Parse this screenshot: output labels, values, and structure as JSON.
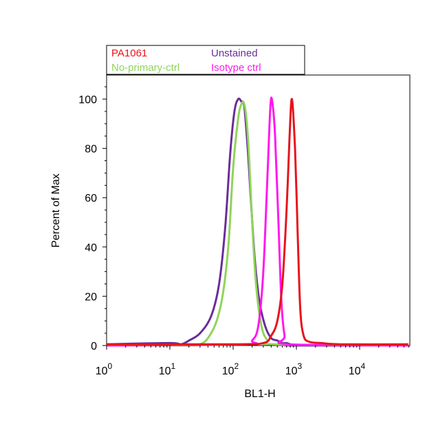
{
  "chart_data": {
    "type": "line",
    "title": "",
    "xlabel": "BL1-H",
    "ylabel": "Percent of Max",
    "x_scale": "log",
    "xlim": [
      1,
      60000
    ],
    "ylim": [
      0,
      110
    ],
    "x_ticks": [
      {
        "value": 1,
        "base": "10",
        "exp": "0"
      },
      {
        "value": 10,
        "base": "10",
        "exp": "1"
      },
      {
        "value": 100,
        "base": "10",
        "exp": "2"
      },
      {
        "value": 1000,
        "base": "10",
        "exp": "3"
      },
      {
        "value": 10000,
        "base": "10",
        "exp": "4"
      }
    ],
    "y_ticks": [
      {
        "value": 0,
        "label": "0"
      },
      {
        "value": 20,
        "label": "20"
      },
      {
        "value": 40,
        "label": "40"
      },
      {
        "value": 60,
        "label": "60"
      },
      {
        "value": 80,
        "label": "80"
      },
      {
        "value": 100,
        "label": "100"
      }
    ],
    "grid": false,
    "legend_position": "top-left",
    "series": [
      {
        "name": "PA1061",
        "color": "#e8121c",
        "x": [
          1,
          100,
          300,
          400,
          500,
          600,
          700,
          780,
          850,
          950,
          1050,
          1150,
          1300,
          1600,
          2500,
          5000,
          60000
        ],
        "y": [
          0.5,
          0.5,
          1,
          4,
          10,
          25,
          55,
          85,
          100,
          80,
          45,
          15,
          4,
          1.5,
          1,
          0.5,
          0.5
        ]
      },
      {
        "name": "Unstained",
        "color": "#6a2c9a",
        "x": [
          1,
          10,
          15,
          20,
          30,
          45,
          60,
          75,
          90,
          105,
          120,
          135,
          150,
          170,
          190,
          220,
          260,
          320,
          400,
          500,
          600,
          700,
          800,
          900,
          60000
        ],
        "y": [
          0.5,
          1,
          0.5,
          2,
          5,
          12,
          25,
          48,
          78,
          95,
          100,
          99,
          97,
          80,
          60,
          35,
          18,
          8,
          3,
          2,
          1,
          1,
          0.5,
          0,
          0
        ]
      },
      {
        "name": "No-primary-ctrl",
        "color": "#8fd45a",
        "x": [
          1,
          20,
          30,
          40,
          55,
          70,
          85,
          100,
          120,
          135,
          150,
          165,
          180,
          200,
          230,
          280,
          350,
          450,
          60000
        ],
        "y": [
          0,
          0,
          0.5,
          3,
          10,
          22,
          42,
          72,
          92,
          98,
          98,
          90,
          75,
          50,
          25,
          8,
          2,
          0.5,
          0
        ]
      },
      {
        "name": "Isotype ctrl",
        "color": "#ff18ee",
        "x": [
          1,
          150,
          200,
          250,
          300,
          350,
          390,
          420,
          460,
          520,
          580,
          650,
          750,
          60000
        ],
        "y": [
          0,
          0.5,
          2,
          8,
          30,
          70,
          98,
          98,
          85,
          50,
          18,
          4,
          0.5,
          0
        ]
      }
    ]
  }
}
